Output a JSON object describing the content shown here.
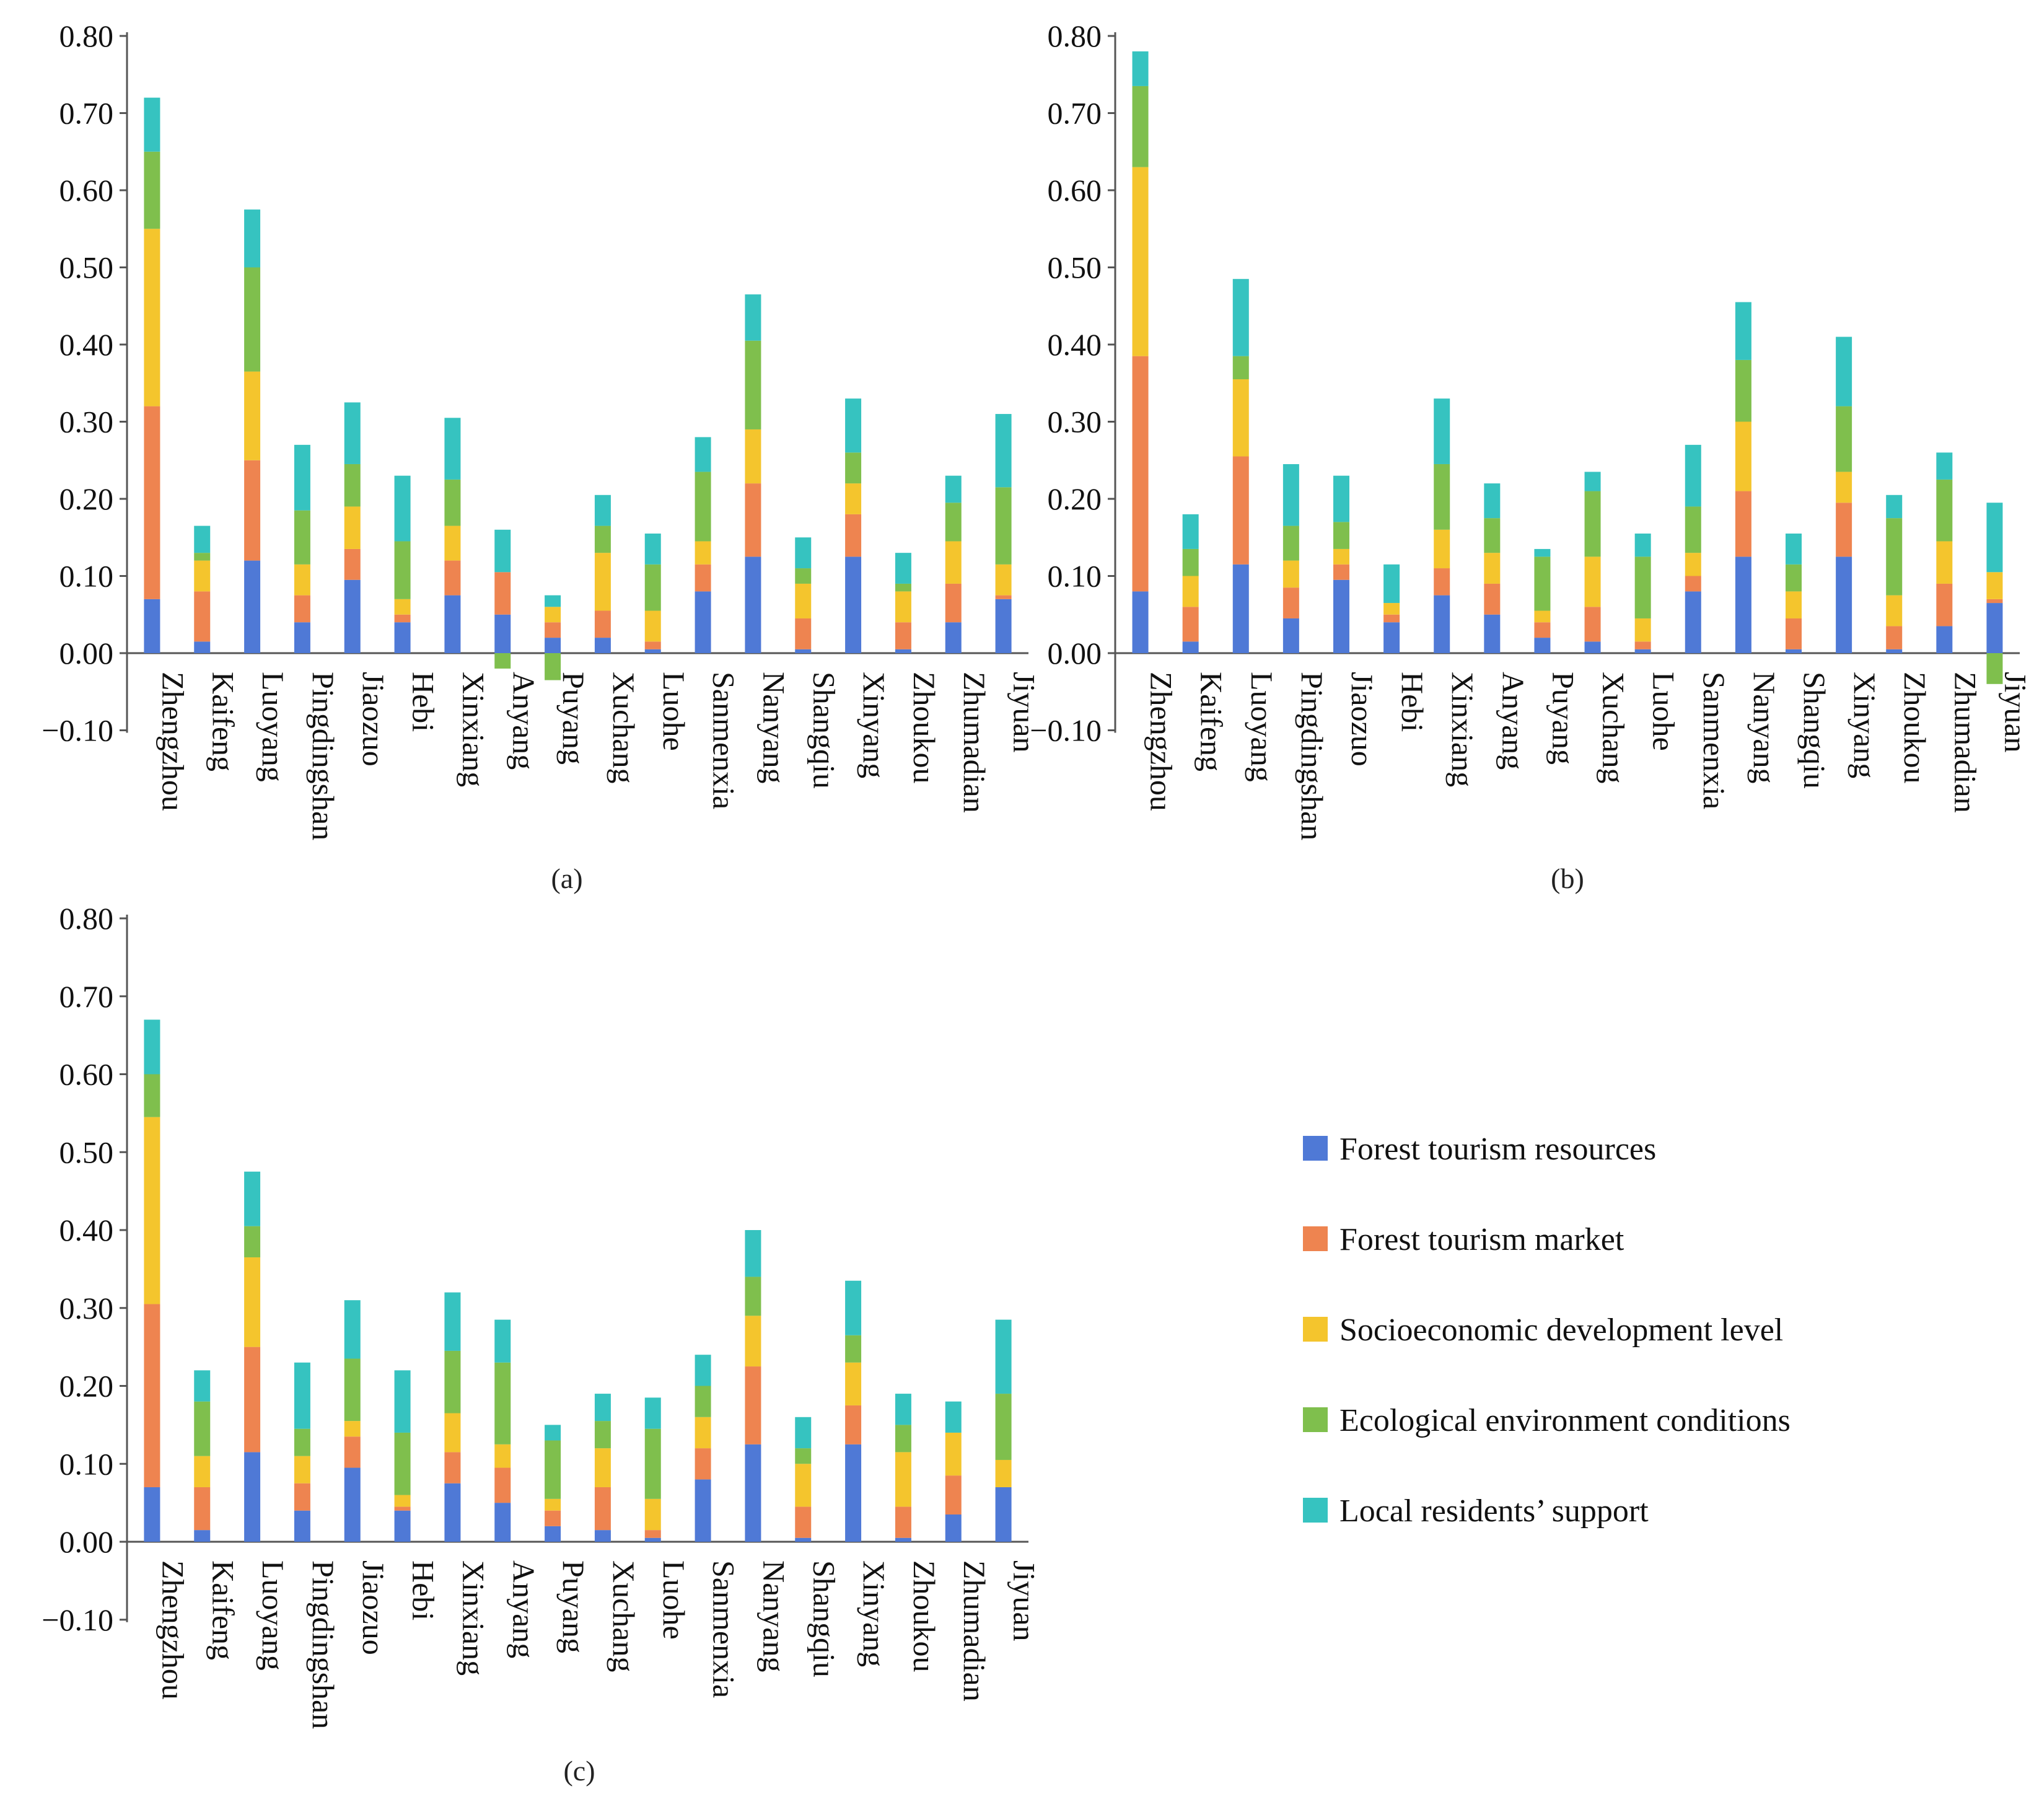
{
  "figure": {
    "panels": [
      "(a)",
      "(b)",
      "(c)"
    ]
  },
  "colors": {
    "forest_tourism_resources": "#4f79d6",
    "forest_tourism_market": "#ee8450",
    "socioeconomic_development_level": "#f4c52d",
    "ecological_environment_conditions": "#7fbf4d",
    "local_residents_support": "#36c3c0",
    "axis": "#555555",
    "text": "#111111"
  },
  "legend": {
    "items": [
      {
        "label": "Forest tourism resources",
        "color": "#4f79d6"
      },
      {
        "label": "Forest tourism market",
        "color": "#ee8450"
      },
      {
        "label": "Socioeconomic development level",
        "color": "#f4c52d"
      },
      {
        "label": "Ecological environment conditions",
        "color": "#7fbf4d"
      },
      {
        "label": "Local residents’ support",
        "color": "#36c3c0"
      }
    ]
  },
  "chart_data": [
    {
      "type": "bar",
      "stacked": true,
      "panel": "(a)",
      "categories": [
        "Zhengzhou",
        "Kaifeng",
        "Luoyang",
        "Pingdingshan",
        "Jiaozuo",
        "Hebi",
        "Xinxiang",
        "Anyang",
        "Puyang",
        "Xuchang",
        "Luohe",
        "Sanmenxia",
        "Nanyang",
        "Shangqiu",
        "Xinyang",
        "Zhoukou",
        "Zhumadian",
        "Jiyuan"
      ],
      "yticks": [
        "0.80",
        "0.70",
        "0.60",
        "0.50",
        "0.40",
        "0.30",
        "0.20",
        "0.10",
        "0.00",
        "−0.10"
      ],
      "ylim": [
        -0.1,
        0.8
      ],
      "series": [
        {
          "name": "Forest tourism resources",
          "values": [
            0.07,
            0.015,
            0.12,
            0.04,
            0.095,
            0.04,
            0.075,
            0.05,
            0.02,
            0.02,
            0.005,
            0.08,
            0.125,
            0.005,
            0.125,
            0.005,
            0.04,
            0.07
          ]
        },
        {
          "name": "Forest tourism market",
          "values": [
            0.25,
            0.065,
            0.13,
            0.035,
            0.04,
            0.01,
            0.045,
            0.055,
            0.02,
            0.035,
            0.01,
            0.035,
            0.095,
            0.04,
            0.055,
            0.035,
            0.05,
            0.005
          ]
        },
        {
          "name": "Socioeconomic development level",
          "values": [
            0.23,
            0.04,
            0.115,
            0.04,
            0.055,
            0.02,
            0.045,
            0.0,
            0.02,
            0.075,
            0.04,
            0.03,
            0.07,
            0.045,
            0.04,
            0.04,
            0.055,
            0.04
          ]
        },
        {
          "name": "Ecological environment conditions",
          "values": [
            0.1,
            0.01,
            0.135,
            0.07,
            0.055,
            0.075,
            0.06,
            -0.02,
            -0.035,
            0.035,
            0.06,
            0.09,
            0.115,
            0.02,
            0.04,
            0.01,
            0.05,
            0.1
          ]
        },
        {
          "name": "Local residents’ support",
          "values": [
            0.07,
            0.035,
            0.075,
            0.085,
            0.08,
            0.085,
            0.08,
            0.055,
            0.015,
            0.04,
            0.04,
            0.045,
            0.06,
            0.04,
            0.07,
            0.04,
            0.035,
            0.095
          ]
        }
      ]
    },
    {
      "type": "bar",
      "stacked": true,
      "panel": "(b)",
      "categories": [
        "Zhengzhou",
        "Kaifeng",
        "Luoyang",
        "Pingdingshan",
        "Jiaozuo",
        "Hebi",
        "Xinxiang",
        "Anyang",
        "Puyang",
        "Xuchang",
        "Luohe",
        "Sanmenxia",
        "Nanyang",
        "Shangqiu",
        "Xinyang",
        "Zhoukou",
        "Zhumadian",
        "Jiyuan"
      ],
      "yticks": [
        "0.80",
        "0.70",
        "0.60",
        "0.50",
        "0.40",
        "0.30",
        "0.20",
        "0.10",
        "0.00",
        "−0.10"
      ],
      "ylim": [
        -0.1,
        0.8
      ],
      "series": [
        {
          "name": "Forest tourism resources",
          "values": [
            0.08,
            0.015,
            0.115,
            0.045,
            0.095,
            0.04,
            0.075,
            0.05,
            0.02,
            0.015,
            0.005,
            0.08,
            0.125,
            0.005,
            0.125,
            0.005,
            0.035,
            0.065
          ]
        },
        {
          "name": "Forest tourism market",
          "values": [
            0.305,
            0.045,
            0.14,
            0.04,
            0.02,
            0.01,
            0.035,
            0.04,
            0.02,
            0.045,
            0.01,
            0.02,
            0.085,
            0.04,
            0.07,
            0.03,
            0.055,
            0.005
          ]
        },
        {
          "name": "Socioeconomic development level",
          "values": [
            0.245,
            0.04,
            0.1,
            0.035,
            0.02,
            0.015,
            0.05,
            0.04,
            0.015,
            0.065,
            0.03,
            0.03,
            0.09,
            0.035,
            0.04,
            0.04,
            0.055,
            0.035
          ]
        },
        {
          "name": "Ecological environment conditions",
          "values": [
            0.105,
            0.035,
            0.03,
            0.045,
            0.035,
            0.0,
            0.085,
            0.045,
            0.07,
            0.085,
            0.08,
            0.06,
            0.08,
            0.035,
            0.085,
            0.1,
            0.08,
            -0.04
          ]
        },
        {
          "name": "Local residents’ support",
          "values": [
            0.045,
            0.045,
            0.1,
            0.08,
            0.06,
            0.05,
            0.085,
            0.045,
            0.01,
            0.025,
            0.03,
            0.08,
            0.075,
            0.04,
            0.09,
            0.03,
            0.035,
            0.09
          ]
        }
      ]
    },
    {
      "type": "bar",
      "stacked": true,
      "panel": "(c)",
      "categories": [
        "Zhengzhou",
        "Kaifeng",
        "Luoyang",
        "Pingdingshan",
        "Jiaozuo",
        "Hebi",
        "Xinxiang",
        "Anyang",
        "Puyang",
        "Xuchang",
        "Luohe",
        "Sanmenxia",
        "Nanyang",
        "Shangqiu",
        "Xinyang",
        "Zhoukou",
        "Zhumadian",
        "Jiyuan"
      ],
      "yticks": [
        "0.80",
        "0.70",
        "0.60",
        "0.50",
        "0.40",
        "0.30",
        "0.20",
        "0.10",
        "0.00",
        "−0.10"
      ],
      "ylim": [
        -0.1,
        0.8
      ],
      "series": [
        {
          "name": "Forest tourism resources",
          "values": [
            0.07,
            0.015,
            0.115,
            0.04,
            0.095,
            0.04,
            0.075,
            0.05,
            0.02,
            0.015,
            0.005,
            0.08,
            0.125,
            0.005,
            0.125,
            0.005,
            0.035,
            0.07
          ]
        },
        {
          "name": "Forest tourism market",
          "values": [
            0.235,
            0.055,
            0.135,
            0.035,
            0.04,
            0.005,
            0.04,
            0.045,
            0.02,
            0.055,
            0.01,
            0.04,
            0.1,
            0.04,
            0.05,
            0.04,
            0.05,
            0.0
          ]
        },
        {
          "name": "Socioeconomic development level",
          "values": [
            0.24,
            0.04,
            0.115,
            0.035,
            0.02,
            0.015,
            0.05,
            0.03,
            0.015,
            0.05,
            0.04,
            0.04,
            0.065,
            0.055,
            0.055,
            0.07,
            0.055,
            0.035
          ]
        },
        {
          "name": "Ecological environment conditions",
          "values": [
            0.055,
            0.07,
            0.04,
            0.035,
            0.08,
            0.08,
            0.08,
            0.105,
            0.075,
            0.035,
            0.09,
            0.04,
            0.05,
            0.02,
            0.035,
            0.035,
            0.0,
            0.085
          ]
        },
        {
          "name": "Local residents’ support",
          "values": [
            0.07,
            0.04,
            0.07,
            0.085,
            0.075,
            0.08,
            0.075,
            0.055,
            0.02,
            0.035,
            0.04,
            0.04,
            0.06,
            0.04,
            0.07,
            0.04,
            0.04,
            0.095
          ]
        }
      ]
    }
  ]
}
